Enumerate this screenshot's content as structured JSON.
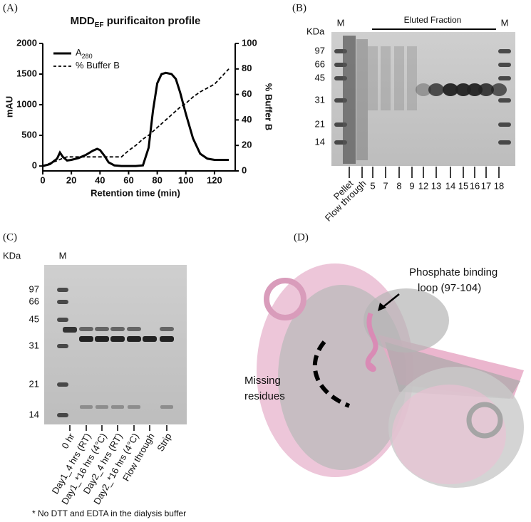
{
  "panels": [
    "(A)",
    "(B)",
    "(C)",
    "(D)"
  ],
  "chart_data": {
    "type": "line",
    "title": "MDD",
    "title_sub": "EF",
    "title_rest": " purificaiton profile",
    "x_label": "Retention time (min)",
    "y_label": "mAU",
    "y2_label": "% Buffer B",
    "x": [
      0,
      5,
      10,
      12,
      14,
      17,
      20,
      25,
      30,
      35,
      38,
      40,
      43,
      46,
      50,
      55,
      60,
      65,
      70,
      74,
      77,
      80,
      83,
      86,
      90,
      93,
      96,
      100,
      105,
      110,
      115,
      120,
      125,
      130
    ],
    "series": [
      {
        "name": "A",
        "name_sub": "280",
        "color": "#000000",
        "dash": false,
        "values": [
          0,
          30,
          120,
          220,
          150,
          90,
          100,
          130,
          180,
          250,
          280,
          260,
          170,
          60,
          10,
          0,
          0,
          0,
          10,
          300,
          900,
          1350,
          1500,
          1520,
          1500,
          1420,
          1200,
          850,
          450,
          200,
          120,
          100,
          100,
          100
        ]
      },
      {
        "name": "% Buffer B",
        "color": "#000000",
        "dash": true,
        "axis": "y2",
        "values": [
          4,
          6,
          8,
          9,
          10,
          11,
          11,
          11,
          11,
          11,
          11,
          11,
          11,
          11,
          11,
          11,
          16,
          20,
          25,
          28,
          31,
          34,
          37,
          40,
          44,
          47,
          50,
          53,
          58,
          62,
          65,
          68,
          74,
          80
        ]
      }
    ],
    "xlim": [
      0,
      130
    ],
    "xticks": [
      0,
      20,
      40,
      60,
      80,
      100,
      120
    ],
    "ylim": [
      -80,
      2000
    ],
    "yticks": [
      0,
      500,
      1000,
      1500,
      2000
    ],
    "y2lim": [
      0,
      100
    ],
    "y2ticks": [
      0,
      20,
      40,
      60,
      80,
      100
    ]
  },
  "panel_b": {
    "kda": "KDa",
    "marker_left": "M",
    "marker_right": "M",
    "header": "Eluted Fraction",
    "ladder": [
      "97",
      "66",
      "45",
      "31",
      "21",
      "14"
    ],
    "lanes": [
      "Pellet",
      "Flow through",
      "5",
      "7",
      "8",
      "9",
      "12",
      "13",
      "14",
      "15",
      "16",
      "17",
      "18"
    ]
  },
  "panel_c": {
    "kda": "KDa",
    "marker": "M",
    "ladder": [
      "97",
      "66",
      "45",
      "31",
      "21",
      "14"
    ],
    "lanes": [
      "0 hr",
      "Day1_4 hrs (RT)",
      "Day1_*16 hrs (4°C)",
      "Day2_4 hrs (RT)",
      "Day2_*16 hrs (4°C)",
      "Flow through",
      "Strip"
    ],
    "footnote": "* No DTT and EDTA in the dialysis buffer"
  },
  "panel_d": {
    "loop_label": [
      "Phosphate binding",
      "loop (97-104)"
    ],
    "missing_label": [
      "Missing",
      "residues"
    ]
  }
}
